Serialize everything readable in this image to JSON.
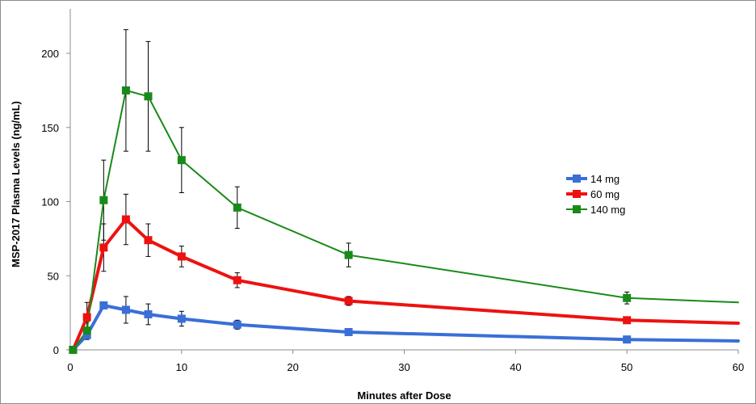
{
  "chart_data": {
    "type": "line",
    "xlabel": "Minutes after Dose",
    "ylabel": "MSP-2017 Plasma Levels (ng/mL)",
    "xlim": [
      0,
      60
    ],
    "ylim": [
      0,
      230
    ],
    "xticks": [
      0,
      10,
      20,
      30,
      40,
      50,
      60
    ],
    "yticks": [
      0,
      50,
      100,
      150,
      200
    ],
    "grid": false,
    "legend_position": "right",
    "series": [
      {
        "name": "14 mg",
        "color": "#3a6fd6",
        "line_width": 4,
        "marker": "square",
        "points": [
          {
            "x": 0.25,
            "y": 0
          },
          {
            "x": 1.5,
            "y": 10
          },
          {
            "x": 3,
            "y": 30
          },
          {
            "x": 5,
            "y": 27,
            "err": 9
          },
          {
            "x": 7,
            "y": 24,
            "err": 7
          },
          {
            "x": 10,
            "y": 21,
            "err": 5
          },
          {
            "x": 15,
            "y": 17,
            "err": 3
          },
          {
            "x": 25,
            "y": 12
          },
          {
            "x": 50,
            "y": 7
          },
          {
            "x": 60,
            "y": 6
          }
        ]
      },
      {
        "name": "60 mg",
        "color": "#ee1111",
        "line_width": 4,
        "marker": "square",
        "points": [
          {
            "x": 0.25,
            "y": 0
          },
          {
            "x": 1.5,
            "y": 22,
            "err": 10
          },
          {
            "x": 3,
            "y": 69,
            "err": 16
          },
          {
            "x": 5,
            "y": 88,
            "err": 17
          },
          {
            "x": 7,
            "y": 74,
            "err": 11
          },
          {
            "x": 10,
            "y": 63,
            "err": 7
          },
          {
            "x": 15,
            "y": 47,
            "err": 5
          },
          {
            "x": 25,
            "y": 33,
            "err": 3
          },
          {
            "x": 50,
            "y": 20,
            "err": 2
          },
          {
            "x": 60,
            "y": 18
          }
        ]
      },
      {
        "name": "140 mg",
        "color": "#198a19",
        "line_width": 2,
        "marker": "square",
        "points": [
          {
            "x": 0.25,
            "y": 0
          },
          {
            "x": 1.5,
            "y": 13,
            "err": 6
          },
          {
            "x": 3,
            "y": 101,
            "err": 27
          },
          {
            "x": 5,
            "y": 175,
            "err": 41
          },
          {
            "x": 7,
            "y": 171,
            "err": 37
          },
          {
            "x": 10,
            "y": 128,
            "err": 22
          },
          {
            "x": 15,
            "y": 96,
            "err": 14
          },
          {
            "x": 25,
            "y": 64,
            "err": 8
          },
          {
            "x": 50,
            "y": 35,
            "err": 4
          },
          {
            "x": 60,
            "y": 32
          }
        ]
      }
    ]
  }
}
